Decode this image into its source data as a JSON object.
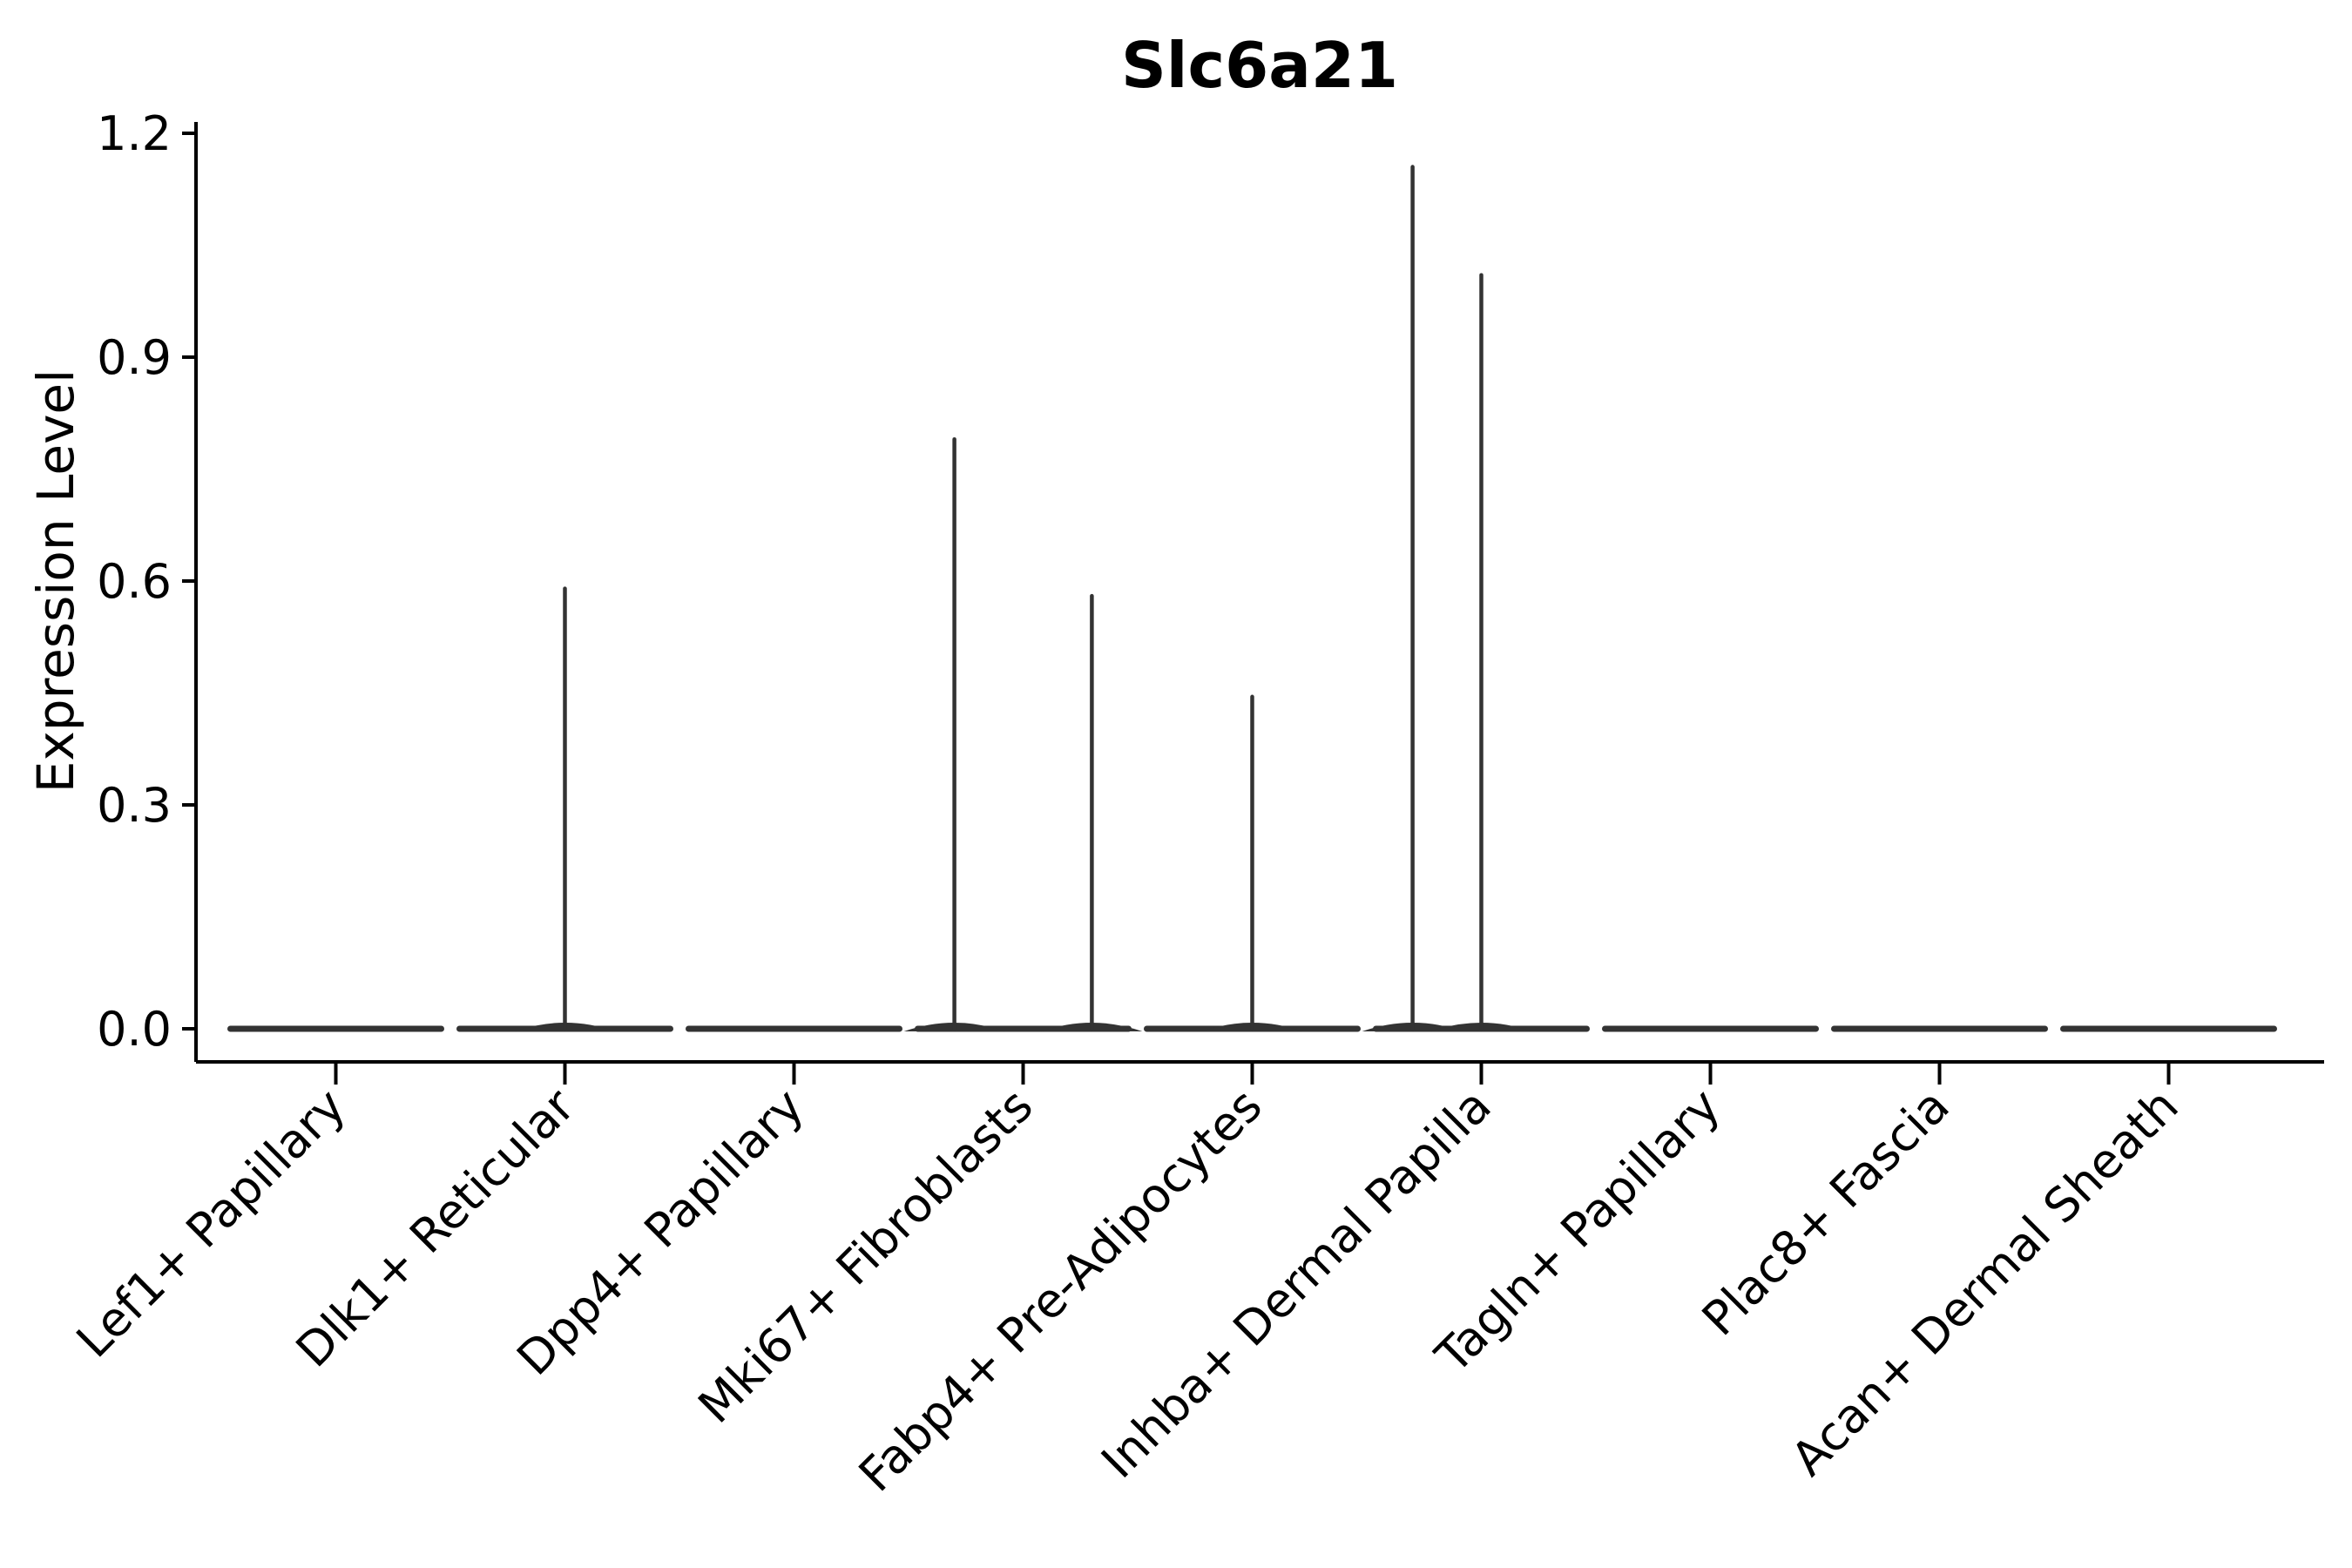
{
  "chart_data": {
    "type": "violin",
    "title": "Slc6a21",
    "ylabel": "Expression Level",
    "xlabel": "",
    "ylim": [
      0,
      1.2
    ],
    "yticks": [
      0.0,
      0.3,
      0.6,
      0.9,
      1.2
    ],
    "ytick_labels": [
      "0.0",
      "0.3",
      "0.6",
      "0.9",
      "1.2"
    ],
    "grid": false,
    "legend": null,
    "categories": [
      "Lef1+ Papillary",
      "Dlk1+ Reticular",
      "Dpp4+ Papillary",
      "Mki67+ Fibroblasts",
      "Fabp4+ Pre-Adipocytes",
      "Inhba+ Dermal Papilla",
      "Tagln+ Papillary",
      "Plac8+ Fascia",
      "Acan+ Dermal Sheath"
    ],
    "violins": [
      {
        "category": "Lef1+ Papillary",
        "base_value": 0.0,
        "spikes": []
      },
      {
        "category": "Dlk1+ Reticular",
        "base_value": 0.0,
        "spikes": [
          {
            "value": 0.59,
            "dx_frac": 0.0
          }
        ]
      },
      {
        "category": "Dpp4+ Papillary",
        "base_value": 0.0,
        "spikes": []
      },
      {
        "category": "Mki67+ Fibroblasts",
        "base_value": 0.0,
        "spikes": [
          {
            "value": 0.79,
            "dx_frac": -0.3
          },
          {
            "value": 0.58,
            "dx_frac": 0.3
          }
        ]
      },
      {
        "category": "Fabp4+ Pre-Adipocytes",
        "base_value": 0.0,
        "spikes": [
          {
            "value": 0.445,
            "dx_frac": 0.0
          }
        ]
      },
      {
        "category": "Inhba+ Dermal Papilla",
        "base_value": 0.0,
        "spikes": [
          {
            "value": 1.155,
            "dx_frac": -0.3
          },
          {
            "value": 1.01,
            "dx_frac": 0.0
          }
        ]
      },
      {
        "category": "Tagln+ Papillary",
        "base_value": 0.0,
        "spikes": []
      },
      {
        "category": "Plac8+ Fascia",
        "base_value": 0.0,
        "spikes": []
      },
      {
        "category": "Acan+ Dermal Sheath",
        "base_value": 0.0,
        "spikes": []
      }
    ],
    "colors": {
      "violin_stroke": "#333333",
      "axis": "#000000",
      "text": "#000000",
      "background": "#ffffff"
    }
  }
}
